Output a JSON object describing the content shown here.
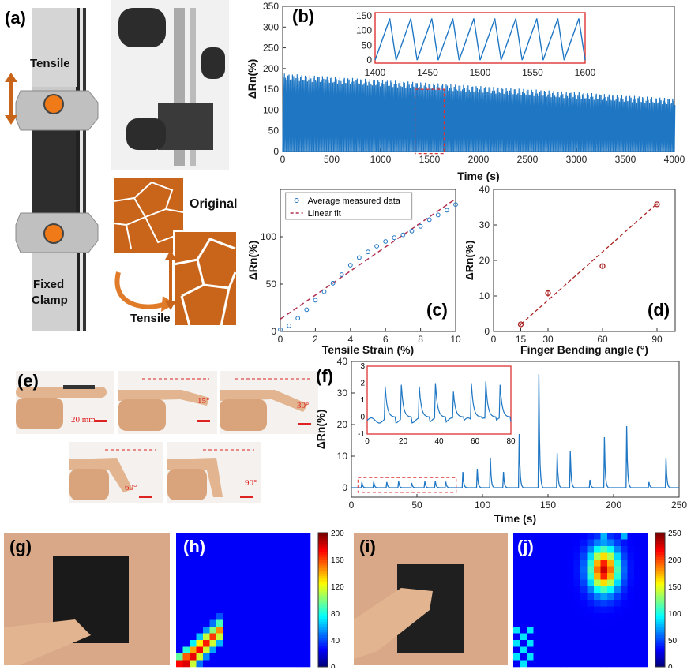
{
  "panel_labels": {
    "a": "(a)",
    "b": "(b)",
    "c": "(c)",
    "d": "(d)",
    "e": "(e)",
    "f": "(f)",
    "g": "(g)",
    "h": "(h)",
    "i": "(i)",
    "j": "(j)"
  },
  "panel_a": {
    "top_label": "Tensile",
    "bottom_label_line1": "Fixed",
    "bottom_label_line2": "Clamp",
    "accent": "#e07b2a"
  },
  "micro": {
    "original_label": "Original",
    "tensile_label": "Tensile",
    "color": "#c8651b"
  },
  "panel_e": {
    "scale_text": "20 mm",
    "angles": [
      "15°",
      "30°",
      "60°",
      "90°"
    ]
  },
  "chart_data": [
    {
      "id": "b",
      "type": "line",
      "xlabel": "Time (s)",
      "ylabel": "ΔRn(%)",
      "xlim": [
        0,
        4000
      ],
      "ylim": [
        0,
        350
      ],
      "xticks": [
        0,
        500,
        1000,
        1500,
        2000,
        2500,
        3000,
        3500,
        4000
      ],
      "yticks": [
        0,
        50,
        100,
        150,
        200,
        250,
        300,
        350
      ],
      "series": [
        {
          "min": 0,
          "max_start": 180,
          "max_end": 120,
          "color": "#1f77c4"
        }
      ],
      "highlight_window": [
        1400,
        1600
      ],
      "inset": {
        "xlim": [
          1400,
          1600
        ],
        "ylim": [
          -10,
          160
        ],
        "xticks": [
          1400,
          1450,
          1500,
          1550,
          1600
        ],
        "yticks": [
          0,
          50,
          100,
          150
        ],
        "cycles": 10,
        "peak": 140,
        "trough": 0
      }
    },
    {
      "id": "c",
      "type": "scatter",
      "xlabel": "Tensile Strain (%)",
      "ylabel": "ΔRn(%)",
      "xlim": [
        0,
        10
      ],
      "ylim": [
        0,
        150
      ],
      "xticks": [
        0,
        2,
        4,
        6,
        8,
        10
      ],
      "yticks": [
        0,
        50,
        100
      ],
      "legend": [
        "Average measured data",
        "Linear fit"
      ],
      "x": [
        0,
        0.5,
        1,
        1.5,
        2,
        2.5,
        3,
        3.5,
        4,
        4.5,
        5,
        5.5,
        6,
        6.5,
        7,
        7.5,
        8,
        8.5,
        9,
        9.5,
        10
      ],
      "y": [
        2,
        6,
        14,
        23,
        33,
        42,
        51,
        60,
        70,
        78,
        84,
        90,
        95,
        99,
        102,
        106,
        111,
        118,
        123,
        128,
        134
      ],
      "fit": {
        "x": [
          0,
          10
        ],
        "y": [
          13,
          140
        ]
      }
    },
    {
      "id": "d",
      "type": "scatter",
      "xlabel": "Finger Bending angle (°)",
      "ylabel": "ΔRn(%)",
      "xlim": [
        0,
        100
      ],
      "ylim": [
        0,
        40
      ],
      "xticks": [
        0,
        15,
        30,
        60,
        90
      ],
      "yticks": [
        0,
        10,
        20,
        30,
        40
      ],
      "x": [
        15,
        30,
        60,
        90
      ],
      "y": [
        2,
        10.8,
        18.4,
        35.8
      ],
      "err": [
        0.3,
        1.0,
        0.8,
        0.3
      ],
      "fit": {
        "x": [
          15,
          90
        ],
        "y": [
          2,
          36
        ]
      }
    },
    {
      "id": "f",
      "type": "line",
      "xlabel": "Time (s)",
      "ylabel": "ΔRn(%)",
      "xlim": [
        0,
        250
      ],
      "ylim": [
        -3,
        40
      ],
      "xticks": [
        0,
        50,
        100,
        150,
        200,
        250
      ],
      "yticks": [
        0,
        10,
        20,
        30,
        40
      ],
      "peaks": [
        [
          8,
          1.8
        ],
        [
          17,
          1.9
        ],
        [
          27,
          1.8
        ],
        [
          36,
          2.0
        ],
        [
          46,
          1.5
        ],
        [
          56,
          2.0
        ],
        [
          64,
          2.1
        ],
        [
          72,
          1.9
        ],
        [
          85,
          5
        ],
        [
          96,
          6
        ],
        [
          106,
          9.5
        ],
        [
          116,
          5
        ],
        [
          128,
          17
        ],
        [
          143,
          36
        ],
        [
          157,
          11
        ],
        [
          167,
          11.5
        ],
        [
          182,
          2.5
        ],
        [
          193,
          16
        ],
        [
          210,
          19.5
        ],
        [
          227,
          1.8
        ],
        [
          240,
          9.5
        ]
      ],
      "highlight_window": [
        5,
        80
      ],
      "inset": {
        "xlim": [
          0,
          80
        ],
        "ylim": [
          -1,
          3
        ],
        "xticks": [
          0,
          20,
          40,
          60,
          80
        ],
        "yticks": [
          -1,
          0,
          1,
          2,
          3
        ]
      }
    },
    {
      "id": "h",
      "type": "heatmap",
      "rows": 20,
      "cols": 20,
      "colorbar_ticks": [
        0,
        40,
        80,
        120,
        160,
        200
      ],
      "vmax": 200
    },
    {
      "id": "j",
      "type": "heatmap",
      "rows": 20,
      "cols": 20,
      "colorbar_ticks": [
        0,
        50,
        100,
        150,
        200,
        250
      ],
      "vmax": 250
    }
  ]
}
